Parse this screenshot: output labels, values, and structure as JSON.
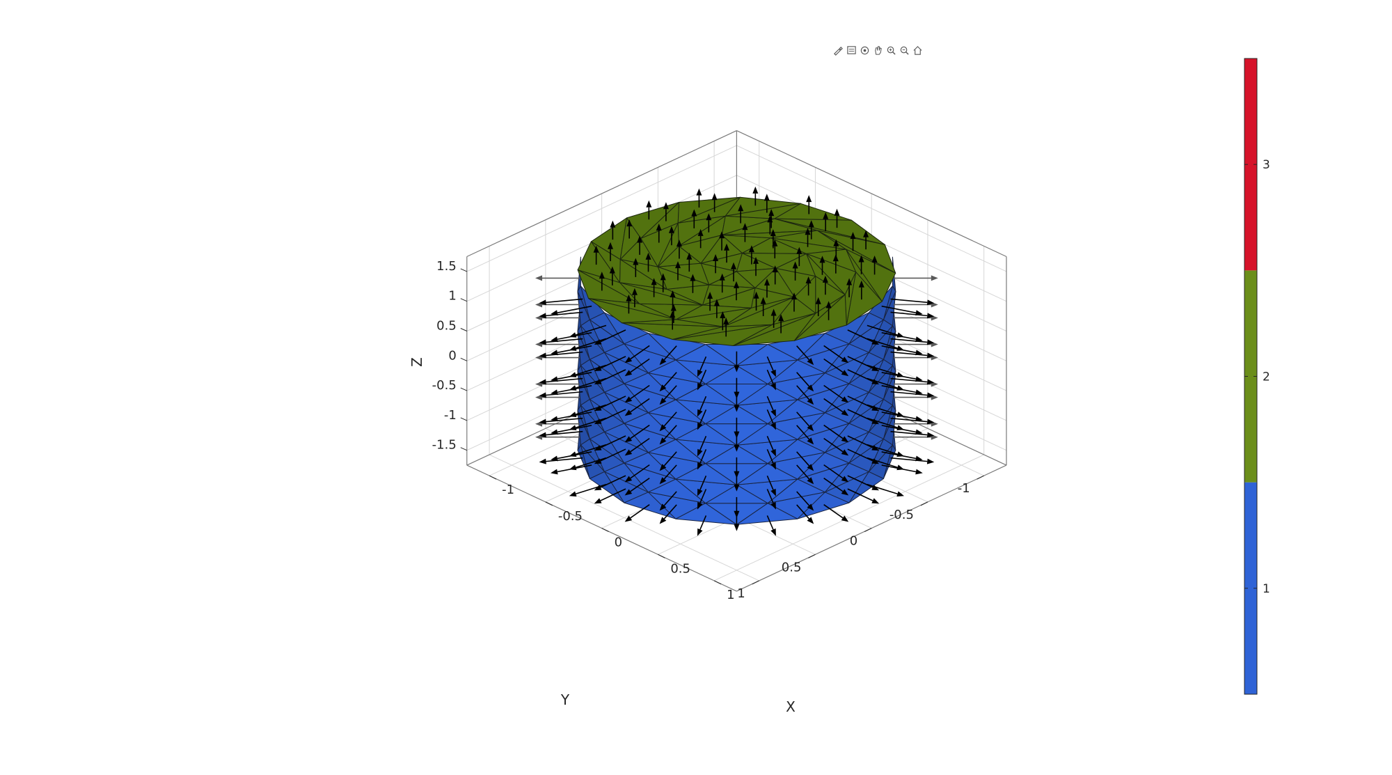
{
  "toolbar": {
    "buttons": [
      "brush-icon",
      "datatip-icon",
      "rotate-icon",
      "pan-icon",
      "zoom-in-icon",
      "zoom-out-icon",
      "home-icon"
    ]
  },
  "colors": {
    "side": "#2f63d6",
    "top": "#52720f",
    "colorbar": [
      "#2f63d6",
      "#6b8e1a",
      "#d6132a"
    ],
    "arrow": "#000000",
    "grid": "#d6d6d6",
    "box": "#262626"
  },
  "chart_data": {
    "type": "surface",
    "title": "",
    "xlabel": "X",
    "ylabel": "Y",
    "zlabel": "Z",
    "x_ticks": [
      "-1",
      "-0.5",
      "0",
      "0.5",
      "1"
    ],
    "y_ticks": [
      "-1",
      "-0.5",
      "0",
      "0.5",
      "1"
    ],
    "z_ticks": [
      "-1.5",
      "-1",
      "-0.5",
      "0",
      "0.5",
      "1",
      "1.5"
    ],
    "xlim": [
      -1.2,
      1.2
    ],
    "ylim": [
      -1.2,
      1.2
    ],
    "zlim": [
      -1.75,
      1.75
    ],
    "grid": true,
    "object": {
      "shape": "triangulated cylinder with face normals",
      "radius": 1,
      "z_range": [
        -1.5,
        1.5
      ],
      "face_labels": [
        1,
        2
      ],
      "side_label": 1,
      "top_label": 2
    },
    "colorbar": {
      "labels": [
        "1",
        "2",
        "3"
      ],
      "values": [
        1,
        2,
        3
      ],
      "colors": [
        "#2f63d6",
        "#6b8e1a",
        "#d6132a"
      ],
      "position": "right"
    }
  }
}
